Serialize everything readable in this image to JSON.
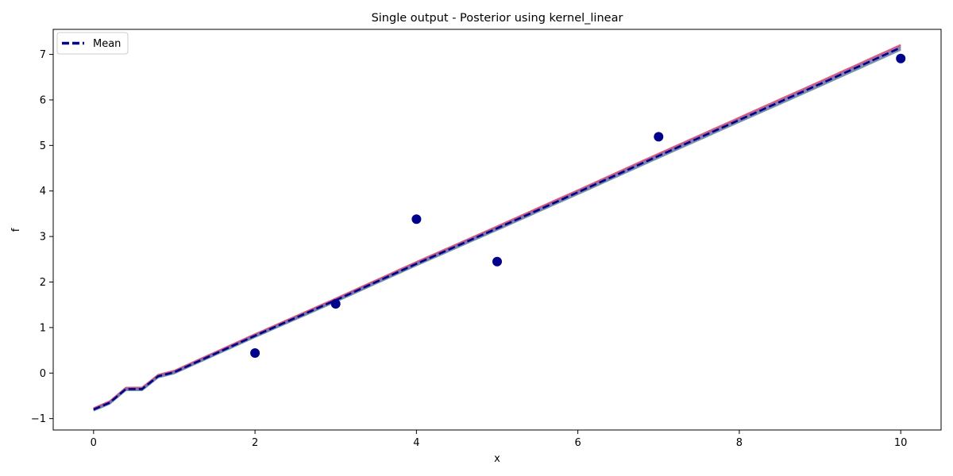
{
  "chart_data": {
    "type": "line",
    "title": "Single output - Posterior using kernel_linear",
    "xlabel": "x",
    "ylabel": "f",
    "xlim": [
      -0.5,
      10.5
    ],
    "ylim": [
      -1.25,
      7.55
    ],
    "xticks": [
      0,
      2,
      4,
      6,
      8,
      10
    ],
    "yticks": [
      -1,
      0,
      1,
      2,
      3,
      4,
      5,
      6,
      7
    ],
    "grid": false,
    "legend": {
      "position": "top-left",
      "entries": [
        "Mean"
      ]
    },
    "colors": {
      "mean": "#00008b",
      "observations": "#00008b",
      "samples": [
        "#4a8a8a",
        "#c06090",
        "#8a70c0",
        "#d04a70",
        "#6a6aa8"
      ]
    },
    "series": [
      {
        "name": "Mean",
        "style": "dashed",
        "x": [
          0,
          0.2,
          0.4,
          0.6,
          0.8,
          1.0,
          2,
          3,
          4,
          5,
          6,
          7,
          8,
          9,
          10
        ],
        "y": [
          -0.8,
          -0.65,
          -0.35,
          -0.35,
          -0.07,
          0.02,
          0.82,
          1.6,
          2.4,
          3.18,
          3.97,
          4.77,
          5.56,
          6.35,
          7.15
        ]
      }
    ],
    "observations": {
      "x": [
        2,
        3,
        4,
        5,
        7,
        10
      ],
      "y": [
        0.44,
        1.52,
        3.38,
        2.45,
        5.19,
        6.91
      ]
    }
  }
}
